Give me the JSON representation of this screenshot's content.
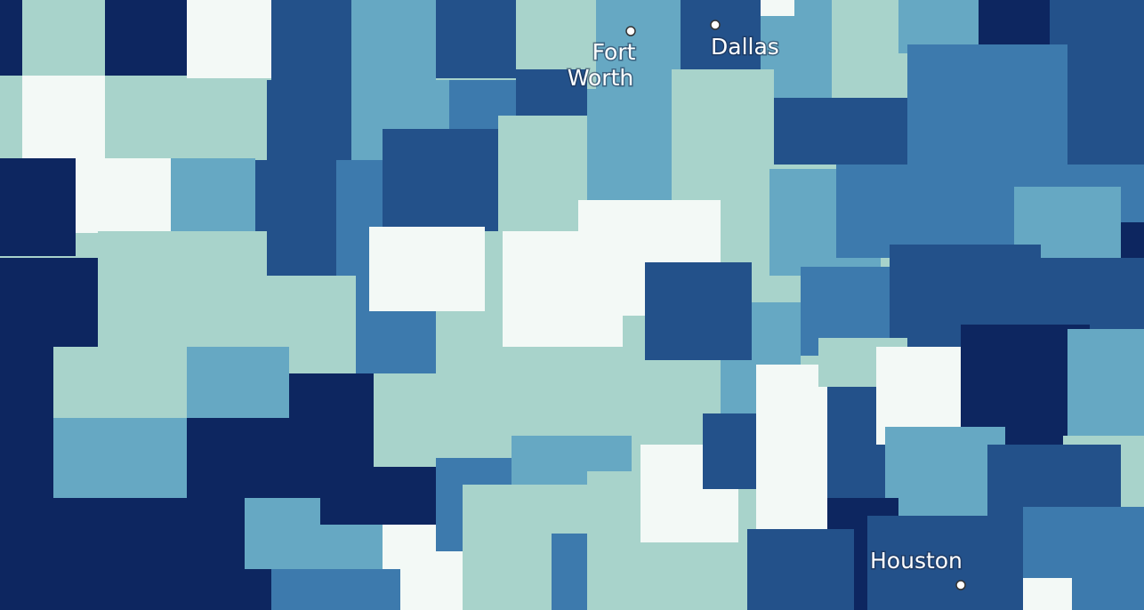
{
  "map": {
    "type": "choropleth",
    "palette": [
      "#f3f9f6",
      "#a8d3cb",
      "#66a8c3",
      "#3d7aad",
      "#23518a",
      "#0d2660"
    ],
    "cities": [
      {
        "name": "Fort Worth",
        "lines": [
          "Fort",
          "Worth"
        ]
      },
      {
        "name": "Dallas",
        "lines": [
          "Dallas"
        ]
      },
      {
        "name": "Houston",
        "lines": [
          "Houston"
        ]
      }
    ]
  }
}
